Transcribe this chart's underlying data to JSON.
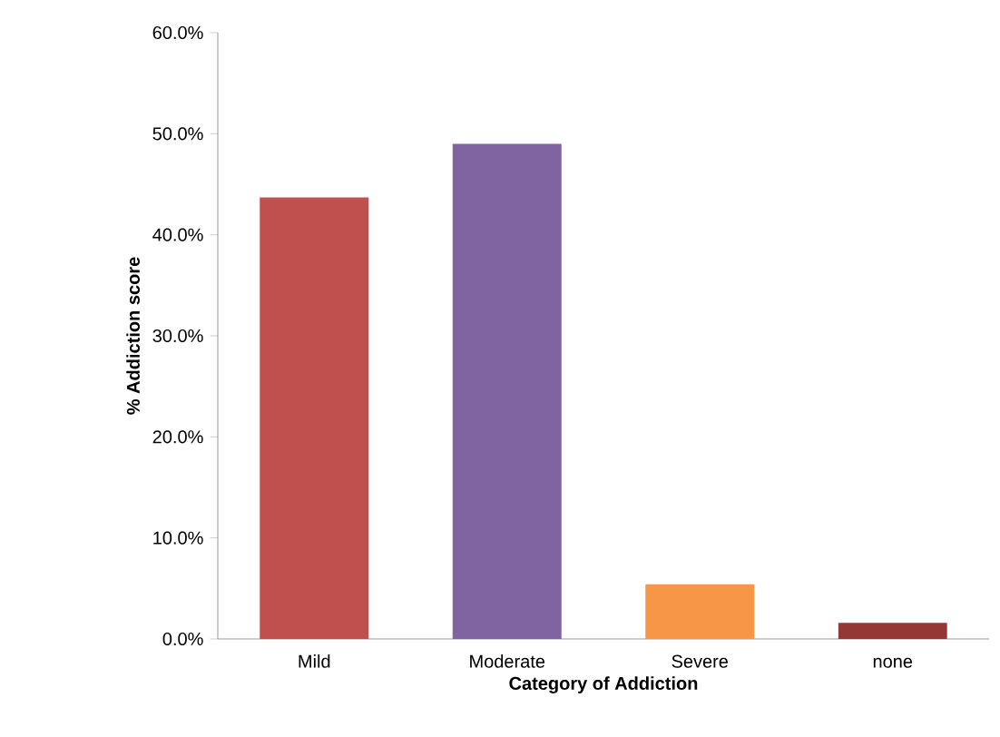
{
  "chart_data": {
    "type": "bar",
    "xlabel": "Category of Addiction",
    "ylabel": "% Addiction score",
    "categories": [
      "Mild",
      "Moderate",
      "Severe",
      "none"
    ],
    "values": [
      43.7,
      49.0,
      5.4,
      1.6
    ],
    "colors": [
      "#c0504d",
      "#8064a2",
      "#f79646",
      "#953735"
    ],
    "ylim": [
      0,
      60
    ],
    "yticks": [
      {
        "value": 0,
        "label": "0.0%"
      },
      {
        "value": 10,
        "label": "10.0%"
      },
      {
        "value": 20,
        "label": "20.0%"
      },
      {
        "value": 30,
        "label": "30.0%"
      },
      {
        "value": 40,
        "label": "40.0%"
      },
      {
        "value": 50,
        "label": "50.0%"
      },
      {
        "value": 60,
        "label": "60.0%"
      }
    ],
    "grid": false
  }
}
